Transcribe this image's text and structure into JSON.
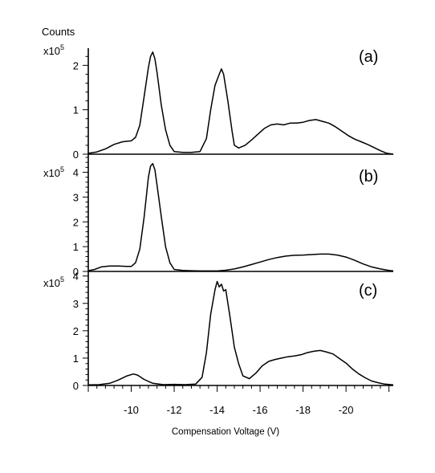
{
  "chart_data": [
    {
      "type": "line",
      "panel_label": "(a)",
      "y_label": "Counts",
      "y_multiplier": "x10",
      "y_exponent": "5",
      "xlabel": "",
      "xlim": [
        -8.0,
        -22.2
      ],
      "ylim": [
        0,
        2.35
      ],
      "yticks": [
        0,
        1,
        2
      ],
      "series": [
        {
          "x": [
            -8.0,
            -8.4,
            -8.8,
            -9.2,
            -9.6,
            -10.0,
            -10.2,
            -10.4,
            -10.6,
            -10.8,
            -10.9,
            -11.0,
            -11.1,
            -11.2,
            -11.4,
            -11.6,
            -11.8,
            -12.0,
            -12.4,
            -12.8,
            -13.2,
            -13.5,
            -13.7,
            -13.9,
            -14.1,
            -14.2,
            -14.3,
            -14.5,
            -14.7,
            -14.8,
            -15.0,
            -15.3,
            -15.6,
            -15.9,
            -16.2,
            -16.5,
            -16.8,
            -17.1,
            -17.4,
            -17.7,
            -18.0,
            -18.3,
            -18.6,
            -18.9,
            -19.2,
            -19.5,
            -19.8,
            -20.1,
            -20.4,
            -20.7,
            -21.0,
            -21.3,
            -21.6,
            -21.9,
            -22.2
          ],
          "y": [
            0.02,
            0.05,
            0.12,
            0.22,
            0.28,
            0.3,
            0.38,
            0.65,
            1.3,
            1.95,
            2.2,
            2.3,
            2.15,
            1.85,
            1.1,
            0.55,
            0.2,
            0.06,
            0.04,
            0.04,
            0.06,
            0.35,
            1.0,
            1.55,
            1.8,
            1.92,
            1.8,
            1.2,
            0.5,
            0.2,
            0.14,
            0.2,
            0.32,
            0.45,
            0.58,
            0.66,
            0.68,
            0.66,
            0.7,
            0.7,
            0.72,
            0.76,
            0.78,
            0.74,
            0.7,
            0.62,
            0.52,
            0.42,
            0.34,
            0.28,
            0.22,
            0.15,
            0.08,
            0.02,
            0.0
          ]
        }
      ]
    },
    {
      "type": "line",
      "panel_label": "(b)",
      "y_multiplier": "x10",
      "y_exponent": "5",
      "xlim": [
        -8.0,
        -22.2
      ],
      "ylim": [
        0,
        4.6
      ],
      "yticks": [
        0,
        1,
        2,
        3,
        4
      ],
      "series": [
        {
          "x": [
            -8.0,
            -8.3,
            -8.6,
            -9.0,
            -9.4,
            -9.8,
            -10.0,
            -10.2,
            -10.4,
            -10.6,
            -10.8,
            -10.9,
            -11.0,
            -11.1,
            -11.2,
            -11.4,
            -11.6,
            -11.8,
            -12.0,
            -12.4,
            -12.8,
            -13.2,
            -13.6,
            -14.0,
            -14.4,
            -14.8,
            -15.2,
            -15.6,
            -16.0,
            -16.4,
            -16.8,
            -17.2,
            -17.6,
            -18.0,
            -18.4,
            -18.8,
            -19.2,
            -19.6,
            -20.0,
            -20.4,
            -20.8,
            -21.2,
            -21.6,
            -22.0,
            -22.2
          ],
          "y": [
            0.03,
            0.08,
            0.18,
            0.22,
            0.22,
            0.2,
            0.2,
            0.35,
            0.9,
            2.2,
            3.8,
            4.25,
            4.35,
            4.1,
            3.5,
            2.2,
            1.0,
            0.35,
            0.08,
            0.04,
            0.03,
            0.02,
            0.02,
            0.02,
            0.05,
            0.1,
            0.18,
            0.28,
            0.38,
            0.48,
            0.56,
            0.62,
            0.65,
            0.66,
            0.68,
            0.7,
            0.7,
            0.66,
            0.58,
            0.45,
            0.3,
            0.18,
            0.1,
            0.04,
            0.02
          ]
        }
      ]
    },
    {
      "type": "line",
      "panel_label": "(c)",
      "y_multiplier": "x10",
      "y_exponent": "5",
      "xlabel": "Compensation Voltage (V)",
      "xlim": [
        -8.0,
        -22.2
      ],
      "ylim": [
        0,
        4.05
      ],
      "yticks": [
        0,
        1,
        2,
        3,
        4
      ],
      "xticks": [
        -10,
        -12,
        -14,
        -16,
        -18,
        -20
      ],
      "series": [
        {
          "x": [
            -8.0,
            -8.5,
            -9.0,
            -9.4,
            -9.8,
            -10.1,
            -10.3,
            -10.6,
            -11.0,
            -11.5,
            -12.0,
            -12.5,
            -13.0,
            -13.3,
            -13.5,
            -13.7,
            -13.9,
            -14.0,
            -14.1,
            -14.2,
            -14.3,
            -14.4,
            -14.6,
            -14.8,
            -15.0,
            -15.2,
            -15.5,
            -15.8,
            -16.1,
            -16.4,
            -16.7,
            -17.0,
            -17.3,
            -17.6,
            -17.9,
            -18.2,
            -18.5,
            -18.8,
            -19.1,
            -19.4,
            -19.7,
            -20.0,
            -20.3,
            -20.6,
            -20.9,
            -21.2,
            -21.5,
            -21.8,
            -22.2
          ],
          "y": [
            0.02,
            0.03,
            0.08,
            0.2,
            0.35,
            0.42,
            0.38,
            0.22,
            0.08,
            0.03,
            0.04,
            0.03,
            0.05,
            0.3,
            1.2,
            2.6,
            3.5,
            3.8,
            3.6,
            3.7,
            3.45,
            3.5,
            2.5,
            1.4,
            0.8,
            0.35,
            0.25,
            0.45,
            0.72,
            0.88,
            0.95,
            1.0,
            1.05,
            1.08,
            1.12,
            1.2,
            1.25,
            1.28,
            1.22,
            1.15,
            0.98,
            0.82,
            0.6,
            0.42,
            0.28,
            0.16,
            0.1,
            0.05,
            0.02
          ]
        }
      ]
    }
  ]
}
